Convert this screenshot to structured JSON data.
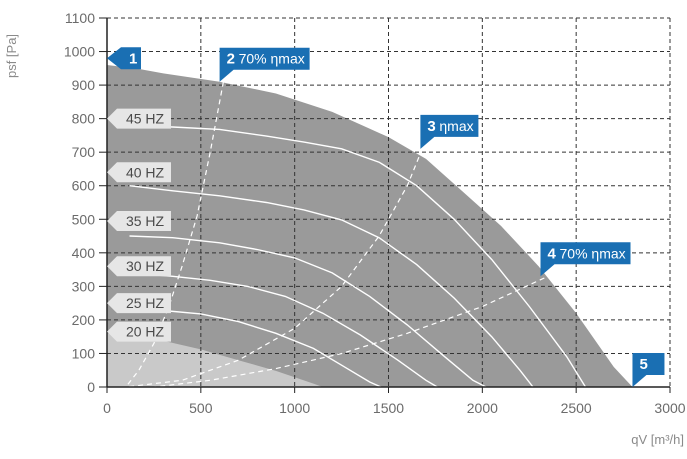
{
  "chart_data": {
    "type": "line",
    "xlabel": "qV [m³/h]",
    "ylabel": "psf [Pa]",
    "xlim": [
      0,
      3000
    ],
    "ylim": [
      0,
      1100
    ],
    "x_ticks": [
      0,
      500,
      1000,
      1500,
      2000,
      2500,
      3000
    ],
    "y_ticks": [
      0,
      100,
      200,
      300,
      400,
      500,
      600,
      700,
      800,
      900,
      1000,
      1100
    ],
    "grid": true,
    "colors": {
      "operating_area": "#9a9a9a",
      "low_area": "#c9c9c9",
      "marker": "#1a6fb3",
      "curve": "#ffffff"
    },
    "envelope": {
      "x": [
        0,
        150,
        300,
        600,
        900,
        1200,
        1500,
        1700,
        1900,
        2100,
        2300,
        2500,
        2700,
        2800
      ],
      "y": [
        960,
        950,
        935,
        910,
        875,
        820,
        745,
        680,
        580,
        480,
        360,
        220,
        60,
        0
      ]
    },
    "low_area": {
      "x": [
        0,
        150,
        300,
        500,
        700,
        900,
        1100,
        1150
      ],
      "y": [
        160,
        150,
        138,
        112,
        80,
        48,
        10,
        0
      ]
    },
    "speed_curves": [
      {
        "name": "45 HZ",
        "x": [
          120,
          350,
          600,
          850,
          1050,
          1250,
          1450,
          1650,
          1850,
          2050,
          2250,
          2450,
          2550
        ],
        "y": [
          780,
          775,
          768,
          748,
          730,
          710,
          670,
          600,
          500,
          380,
          240,
          90,
          0
        ]
      },
      {
        "name": "40 HZ",
        "x": [
          120,
          350,
          600,
          850,
          1050,
          1250,
          1450,
          1650,
          1850,
          2050,
          2200,
          2270
        ],
        "y": [
          600,
          585,
          570,
          550,
          528,
          498,
          445,
          365,
          265,
          150,
          50,
          0
        ]
      },
      {
        "name": "35 HZ",
        "x": [
          120,
          350,
          600,
          800,
          1000,
          1200,
          1400,
          1600,
          1800,
          1950,
          2020
        ],
        "y": [
          450,
          445,
          430,
          410,
          385,
          340,
          270,
          185,
          90,
          20,
          0
        ]
      },
      {
        "name": "30 HZ",
        "x": [
          120,
          350,
          550,
          750,
          950,
          1150,
          1350,
          1550,
          1700,
          1760
        ],
        "y": [
          340,
          330,
          318,
          300,
          270,
          220,
          155,
          80,
          20,
          0
        ]
      },
      {
        "name": "25 HZ",
        "x": [
          120,
          300,
          500,
          700,
          900,
          1100,
          1250,
          1400,
          1460
        ],
        "y": [
          235,
          228,
          218,
          195,
          160,
          115,
          65,
          15,
          0
        ]
      }
    ],
    "efficiency_lines": [
      {
        "x": [
          620,
          550,
          480,
          400,
          330,
          250,
          170,
          100
        ],
        "y": [
          910,
          700,
          510,
          360,
          240,
          130,
          50,
          0
        ]
      },
      {
        "x": [
          1680,
          1600,
          1450,
          1250,
          1000,
          700,
          400,
          100
        ],
        "y": [
          710,
          600,
          450,
          300,
          175,
          80,
          20,
          0
        ]
      },
      {
        "x": [
          2330,
          2000,
          1600,
          1250,
          900,
          550,
          250
        ],
        "y": [
          325,
          240,
          160,
          100,
          55,
          20,
          0
        ]
      }
    ],
    "hz_labels": [
      {
        "text": "45 HZ",
        "y": 800
      },
      {
        "text": "40 HZ",
        "y": 640
      },
      {
        "text": "35 HZ",
        "y": 495
      },
      {
        "text": "30 HZ",
        "y": 360
      },
      {
        "text": "25 HZ",
        "y": 250
      },
      {
        "text": "20 HZ",
        "y": 165
      }
    ],
    "markers": [
      {
        "num": "1",
        "text": "",
        "x": 0,
        "y": 980,
        "tip": "left"
      },
      {
        "num": "2",
        "text": "70% ηmax",
        "x": 600,
        "y": 910,
        "tip": "bottom"
      },
      {
        "num": "3",
        "text": "ηmax",
        "x": 1670,
        "y": 710,
        "tip": "bottom"
      },
      {
        "num": "4",
        "text": "70% ηmax",
        "x": 2310,
        "y": 330,
        "tip": "bottom"
      },
      {
        "num": "5",
        "text": "",
        "x": 2800,
        "y": 0,
        "tip": "bottom"
      }
    ]
  }
}
